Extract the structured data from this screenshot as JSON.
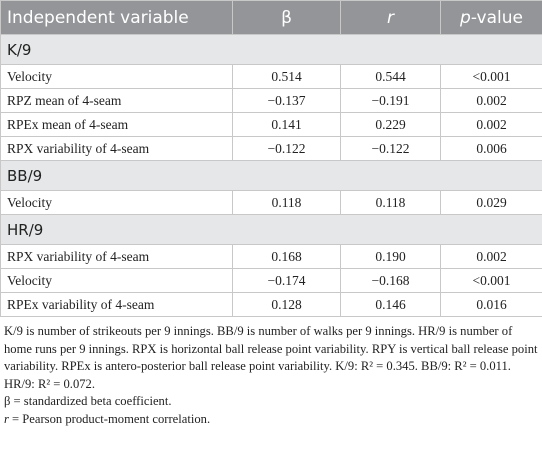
{
  "table": {
    "columns": [
      {
        "text": "Independent variable"
      },
      {
        "text": "β"
      },
      {
        "italic": "r"
      },
      {
        "italic": "p",
        "text": "-value"
      }
    ],
    "sections": [
      {
        "title": "K/9",
        "rows": [
          [
            "Velocity",
            "0.514",
            "0.544",
            "<0.001"
          ],
          [
            "RPZ mean of 4-seam",
            "−0.137",
            "−0.191",
            "0.002"
          ],
          [
            "RPEx mean of 4-seam",
            "0.141",
            "0.229",
            "0.002"
          ],
          [
            "RPX variability of 4-seam",
            "−0.122",
            "−0.122",
            "0.006"
          ]
        ]
      },
      {
        "title": "BB/9",
        "rows": [
          [
            "Velocity",
            "0.118",
            "0.118",
            "0.029"
          ]
        ]
      },
      {
        "title": "HR/9",
        "rows": [
          [
            "RPX variability of 4-seam",
            "0.168",
            "0.190",
            "0.002"
          ],
          [
            "Velocity",
            "−0.174",
            "−0.168",
            "<0.001"
          ],
          [
            "RPEx variability of 4-seam",
            "0.128",
            "0.146",
            "0.016"
          ]
        ]
      }
    ]
  },
  "footnotes": [
    {
      "text": "K/9 is number of strikeouts per 9 innings. BB/9 is number of walks per 9 innings. HR/9 is number of home runs per 9 innings. RPX is horizontal ball release point variability. RPY is vertical ball release point variability. RPEx is antero-posterior ball release point variability. K/9: R² = 0.345. BB/9: R² = 0.011. HR/9: R² = 0.072."
    },
    {
      "text": "β = standardized beta coefficient."
    },
    {
      "italic": "r",
      "text": " = Pearson product-moment correlation."
    }
  ]
}
